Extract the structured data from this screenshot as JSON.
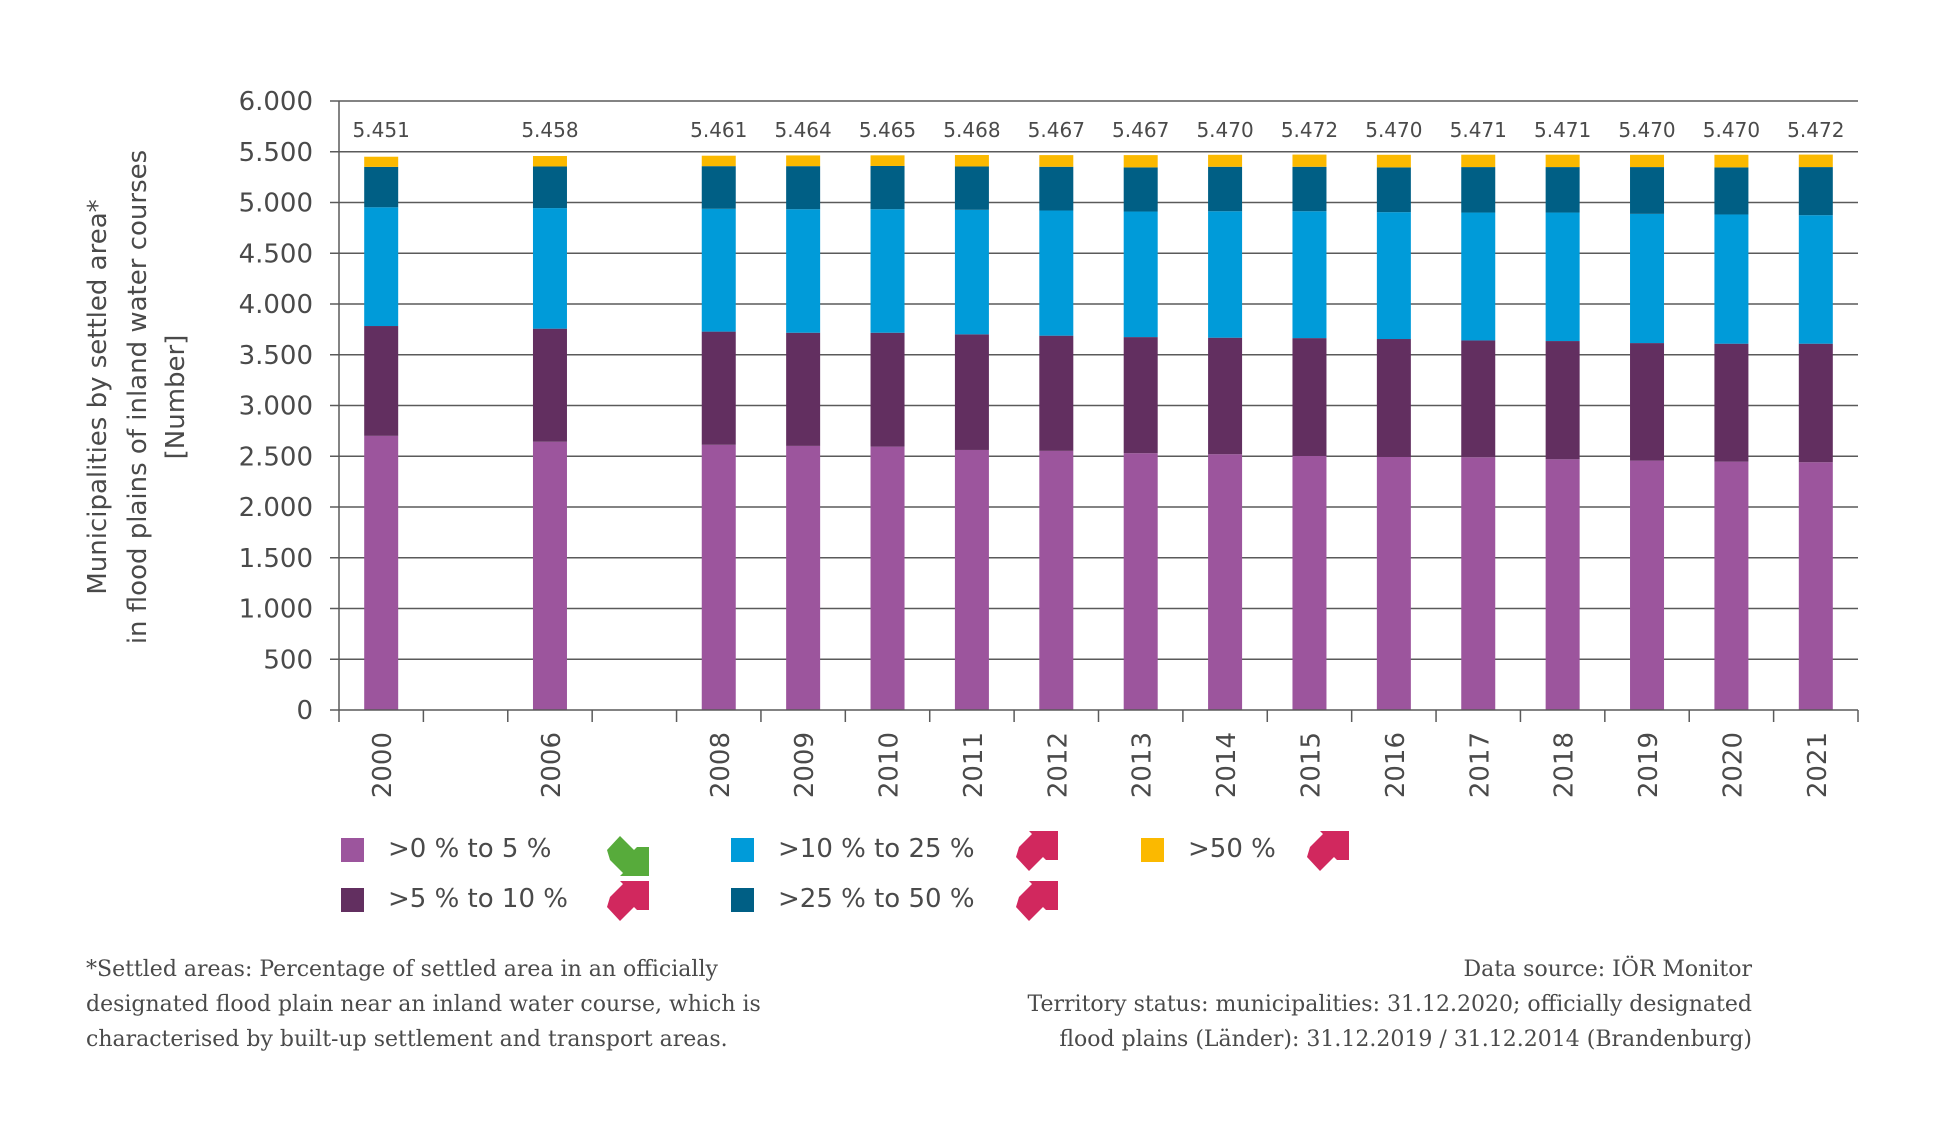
{
  "chart_data": {
    "type": "bar",
    "stacked": true,
    "title": "",
    "ylabel_lines": [
      "Municipalities by settled area*",
      "in flood plains of inland water courses",
      "[Number]"
    ],
    "xlabel": "",
    "ylim": [
      0,
      6000
    ],
    "yticks": [
      0,
      500,
      1000,
      1500,
      2000,
      2500,
      3000,
      3500,
      4000,
      4500,
      5000,
      5500,
      6000
    ],
    "ytick_labels": [
      "0",
      "500",
      "1.000",
      "1.500",
      "2.000",
      "2.500",
      "3.000",
      "3.500",
      "4.000",
      "4.500",
      "5.000",
      "5.500",
      "6.000"
    ],
    "grid": true,
    "x_slots": [
      "2000",
      "",
      "2006",
      "",
      "2008",
      "2009",
      "2010",
      "2011",
      "2012",
      "2013",
      "2014",
      "2015",
      "2016",
      "2017",
      "2018",
      "2019",
      "2020",
      "2021"
    ],
    "categories": [
      "2000",
      "2006",
      "2008",
      "2009",
      "2010",
      "2011",
      "2012",
      "2013",
      "2014",
      "2015",
      "2016",
      "2017",
      "2018",
      "2019",
      "2020",
      "2021"
    ],
    "totals": [
      5451,
      5458,
      5461,
      5464,
      5465,
      5468,
      5467,
      5467,
      5470,
      5472,
      5470,
      5471,
      5471,
      5470,
      5470,
      5472
    ],
    "total_labels": [
      "5.451",
      "5.458",
      "5.461",
      "5.464",
      "5.465",
      "5.468",
      "5.467",
      "5.467",
      "5.470",
      "5.472",
      "5.470",
      "5.471",
      "5.471",
      "5.470",
      "5.470",
      "5.472"
    ],
    "series": [
      {
        "name": ">0 % to 5 %",
        "color": "#9c559d",
        "trend": "down",
        "values": [
          2701,
          2643,
          2613,
          2602,
          2595,
          2562,
          2553,
          2530,
          2520,
          2503,
          2493,
          2490,
          2470,
          2457,
          2447,
          2441
        ]
      },
      {
        "name": ">5 % to 10 %",
        "color": "#622f60",
        "trend": "up",
        "values": [
          1082,
          1114,
          1115,
          1115,
          1122,
          1139,
          1135,
          1144,
          1148,
          1161,
          1162,
          1151,
          1165,
          1158,
          1162,
          1168
        ]
      },
      {
        "name": ">10 % to 25 %",
        "color": "#009bd9",
        "trend": "up",
        "values": [
          1170,
          1188,
          1210,
          1217,
          1217,
          1227,
          1233,
          1237,
          1246,
          1250,
          1250,
          1260,
          1266,
          1273,
          1273,
          1266
        ]
      },
      {
        "name": ">25 % to 50 %",
        "color": "#005f85",
        "trend": "up",
        "values": [
          398,
          410,
          420,
          424,
          426,
          427,
          431,
          435,
          438,
          438,
          441,
          448,
          448,
          461,
          464,
          474
        ]
      },
      {
        "name": ">50 %",
        "color": "#fbb900",
        "trend": "up",
        "values": [
          100,
          103,
          103,
          106,
          105,
          113,
          115,
          121,
          118,
          120,
          124,
          122,
          122,
          121,
          124,
          123
        ]
      }
    ],
    "legend_placement": "bottom",
    "trend_colors": {
      "down": "#57ab3b",
      "up": "#d1285e"
    }
  },
  "legend": {
    "items": [
      {
        "label": ">0 % to 5 %",
        "color": "#9c559d",
        "trend": "down"
      },
      {
        "label": ">5 % to 10 %",
        "color": "#622f60",
        "trend": "up"
      },
      {
        "label": ">10 % to 25 %",
        "color": "#009bd9",
        "trend": "up"
      },
      {
        "label": ">25 % to 50 %",
        "color": "#005f85",
        "trend": "up"
      },
      {
        "label": ">50 %",
        "color": "#fbb900",
        "trend": "up"
      }
    ]
  },
  "footnote": {
    "lines": [
      "*Settled areas: Percentage of settled area in an officially",
      "designated flood plain near an inland water course, which is",
      "characterised by built-up settlement and transport areas."
    ]
  },
  "source": {
    "lines": [
      "Data source: IÖR Monitor",
      "Territory status: municipalities: 31.12.2020; officially designated",
      "flood plains (Länder): 31.12.2019 / 31.12.2014  (Brandenburg)"
    ]
  }
}
